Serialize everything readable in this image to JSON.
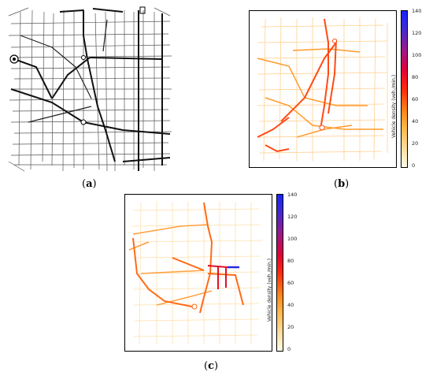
{
  "panels": [
    {
      "id": "a",
      "caption": "(a)"
    },
    {
      "id": "b",
      "caption": "(b)",
      "colorbar": {
        "label": "Vehicle density (veh./min.)",
        "ticks": [
          "140",
          "120",
          "100",
          "80",
          "60",
          "40",
          "20",
          "0"
        ]
      }
    },
    {
      "id": "c",
      "caption": "(c)",
      "colorbar": {
        "label": "Vehicle density (veh./min.)",
        "ticks": [
          "140",
          "120",
          "100",
          "80",
          "60",
          "40",
          "20",
          "0"
        ]
      }
    }
  ],
  "colors": {
    "low": "#fffbe8",
    "mid": "#ff8a1a",
    "high": "#ff2a0a",
    "max": "#1a22ff"
  }
}
